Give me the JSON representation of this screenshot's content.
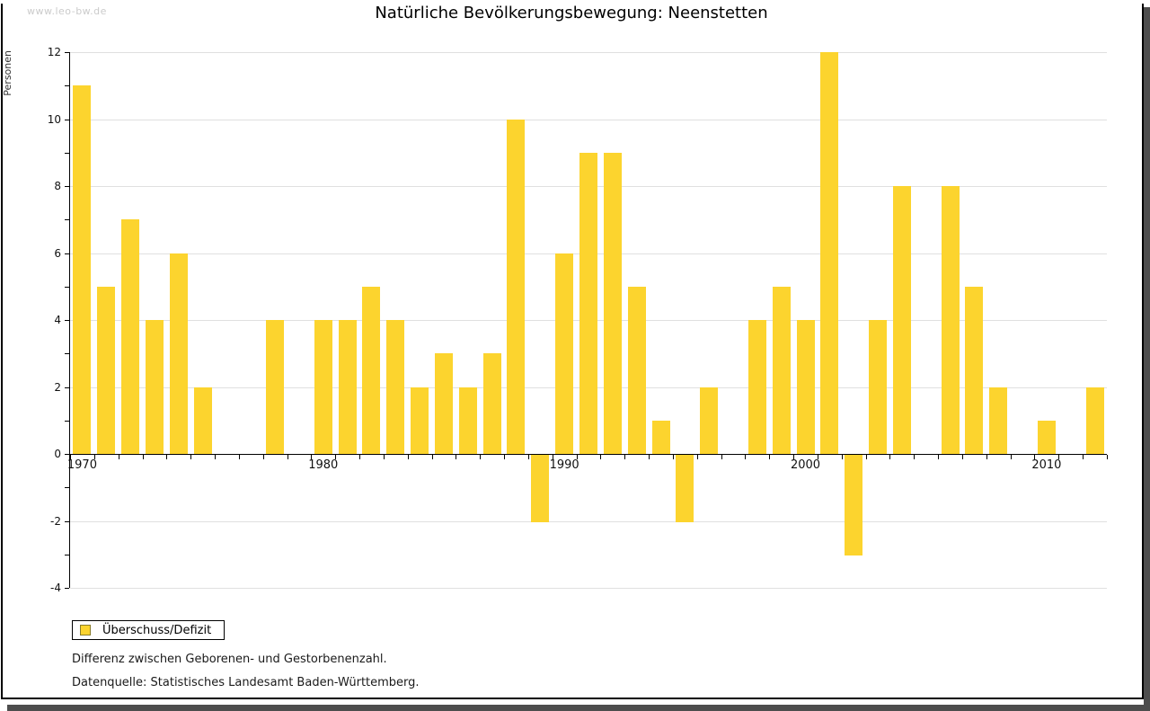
{
  "header": {
    "watermark": "www.leo-bw.de",
    "title": "Natürliche Bevölkerungsbewegung: Neenstetten"
  },
  "legend": {
    "label": "Überschuss/Defizit"
  },
  "footer": {
    "note1": "Differenz zwischen Geborenen- und Gestorbenenzahl.",
    "note2": "Datenquelle: Statistisches Landesamt Baden-Württemberg."
  },
  "colors": {
    "bar": "#fcd42e",
    "swatch_border": "#8a7d2a",
    "gridline": "#e0e0e0",
    "axis": "#000000",
    "watermark": "#cbcbcb",
    "window_shadow": "#4d4d4d"
  },
  "chart_data": {
    "type": "bar",
    "title": "Natürliche Bevölkerungsbewegung: Neenstetten",
    "xlabel": "",
    "ylabel": "Personen",
    "legend": [
      "Überschuss/Defizit"
    ],
    "legend_position": "bottom-left",
    "grid": "horizontal",
    "ylim": [
      -4,
      12
    ],
    "ytick_step": 2,
    "minor_tick_step": 1,
    "x_axis_labels": [
      1970,
      1980,
      1990,
      2000,
      2010
    ],
    "categories": [
      1970,
      1971,
      1972,
      1973,
      1974,
      1975,
      1976,
      1977,
      1978,
      1979,
      1980,
      1981,
      1982,
      1983,
      1984,
      1985,
      1986,
      1987,
      1988,
      1989,
      1990,
      1991,
      1992,
      1993,
      1994,
      1995,
      1996,
      1997,
      1998,
      1999,
      2000,
      2001,
      2002,
      2003,
      2004,
      2005,
      2006,
      2007,
      2008,
      2009,
      2010,
      2011,
      2012
    ],
    "values": [
      11,
      5,
      7,
      4,
      6,
      2,
      0,
      0,
      4,
      0,
      4,
      4,
      5,
      4,
      2,
      3,
      2,
      3,
      10,
      -2,
      6,
      9,
      9,
      5,
      1,
      -2,
      2,
      0,
      4,
      5,
      4,
      12,
      -3,
      4,
      8,
      0,
      8,
      5,
      2,
      0,
      1,
      0,
      2
    ]
  }
}
